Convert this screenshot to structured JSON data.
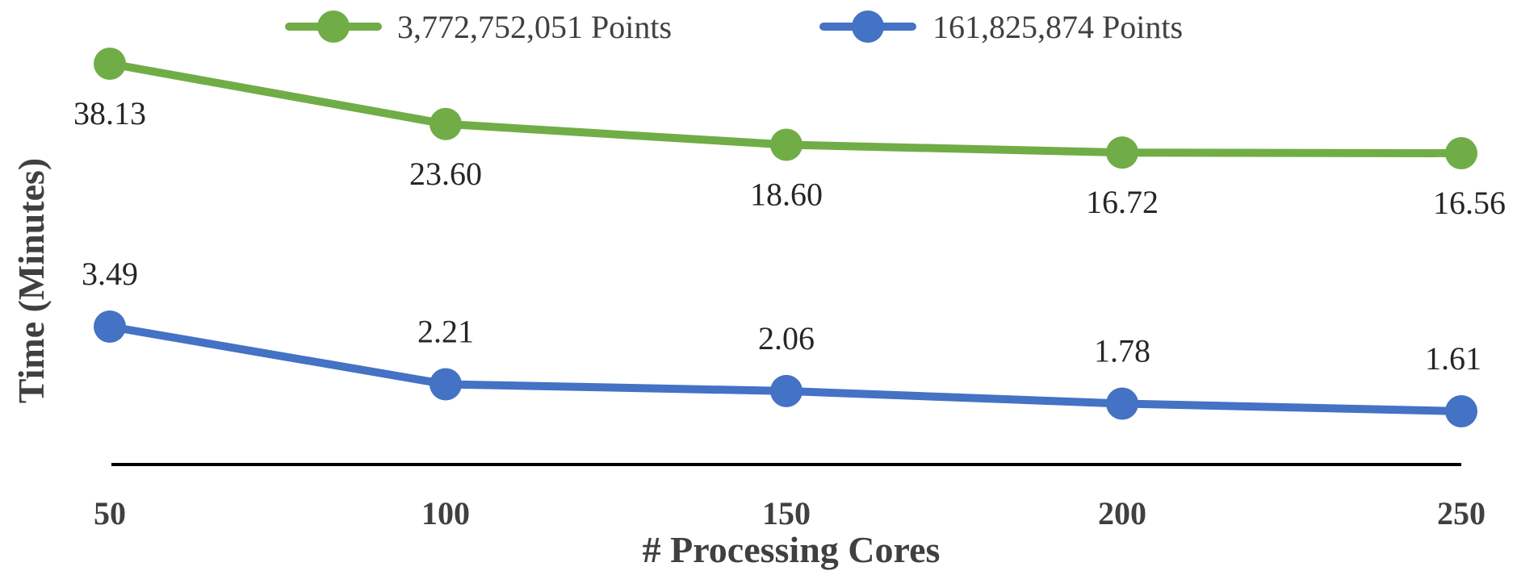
{
  "chart_data": {
    "type": "line",
    "title": "",
    "xlabel": "# Processing Cores",
    "ylabel": "Time (Minutes)",
    "categories": [
      "50",
      "100",
      "150",
      "200",
      "250"
    ],
    "series": [
      {
        "name": "3,772,752,051 Points",
        "color": "#70AD47",
        "values": [
          38.13,
          23.6,
          18.6,
          16.72,
          16.56
        ],
        "labels": [
          "38.13",
          "23.60",
          "18.60",
          "16.72",
          "16.56"
        ]
      },
      {
        "name": "161,825,874 Points",
        "color": "#4472C4",
        "values": [
          3.49,
          2.21,
          2.06,
          1.78,
          1.61
        ],
        "labels": [
          "3.49",
          "2.21",
          "2.06",
          "1.78",
          "1.61"
        ]
      }
    ],
    "grid": false,
    "legend": "top-center"
  }
}
